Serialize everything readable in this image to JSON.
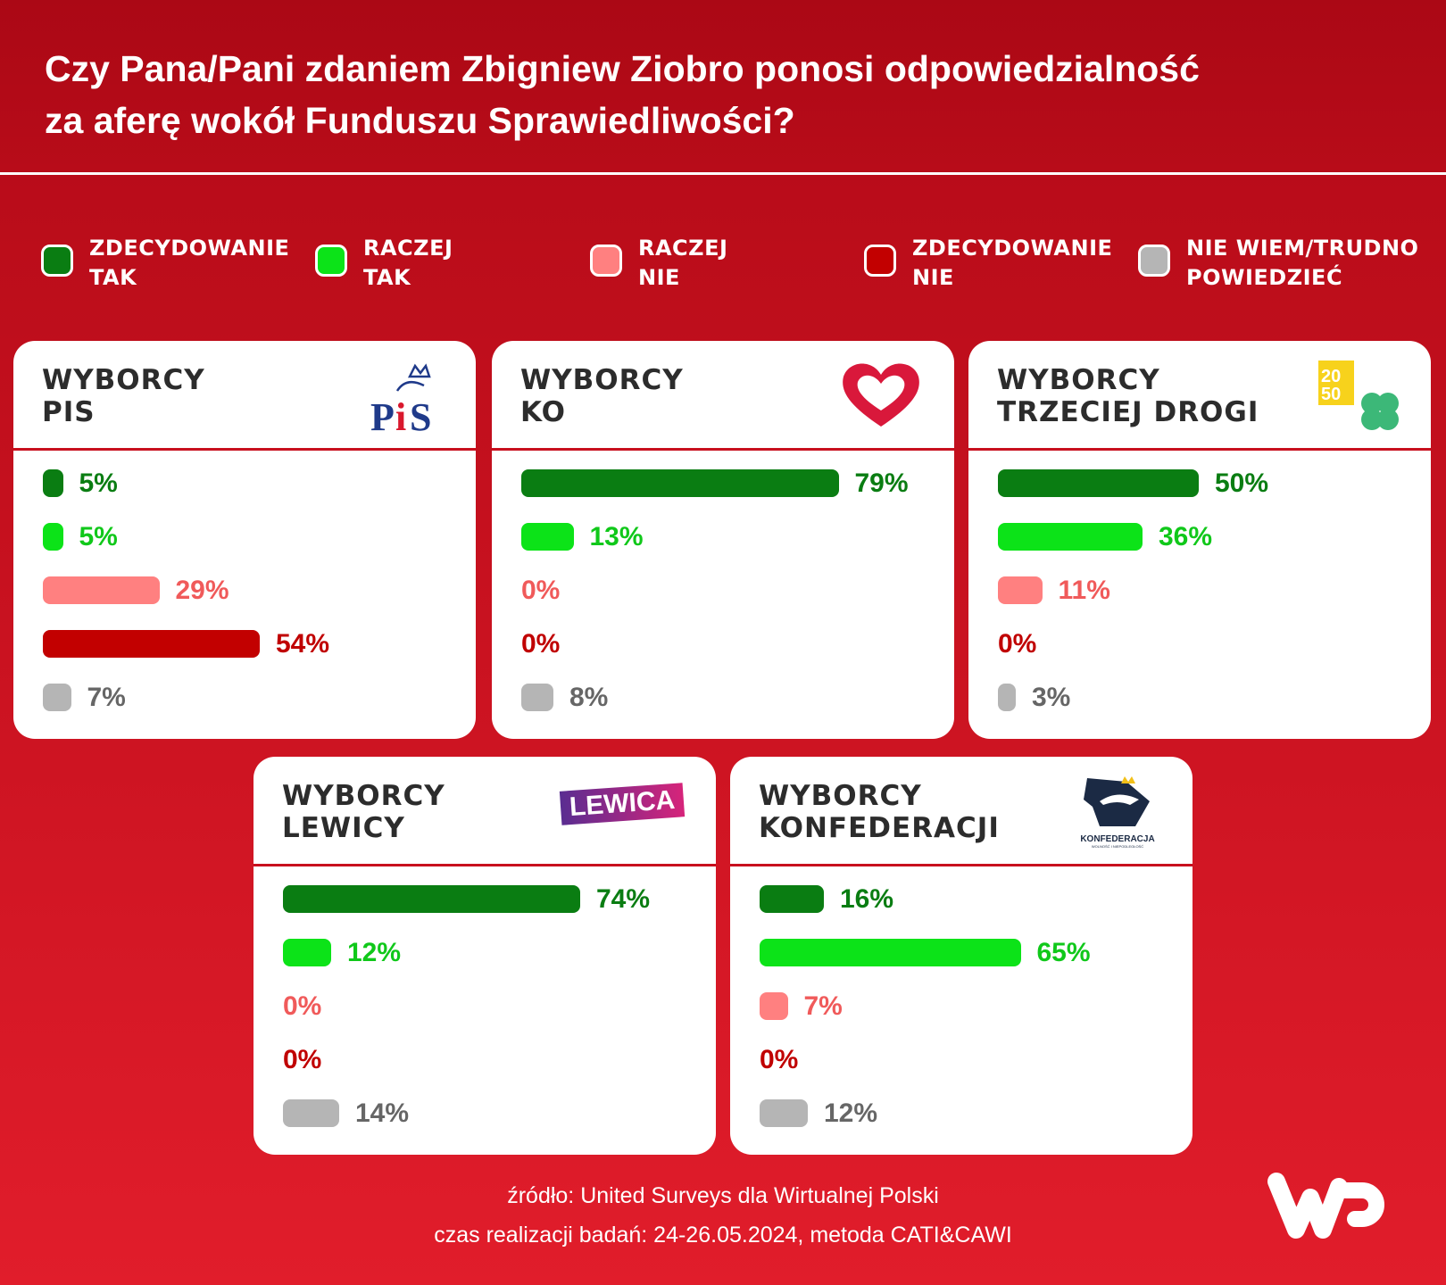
{
  "title": "Czy Pana/Pani zdaniem Zbigniew Ziobro ponosi odpowiedzialność\nza aferę wokół Funduszu Sprawiedliwości?",
  "colors": {
    "bars": [
      "#0a7d12",
      "#0ce318",
      "#ff8080",
      "#c20000",
      "#b5b5b5"
    ],
    "text": [
      "#0a7d12",
      "#10c81a",
      "#f05a5a",
      "#c00000",
      "#666666"
    ]
  },
  "chart_data": {
    "type": "bar",
    "title": "Czy Pana/Pani zdaniem Zbigniew Ziobro ponosi odpowiedzialność za aferę wokół Funduszu Sprawiedliwości?",
    "categories": [
      "ZDECYDOWANIE TAK",
      "RACZEJ TAK",
      "RACZEJ NIE",
      "ZDECYDOWANIE NIE",
      "NIE WIEM/TRUDNO POWIEDZIEĆ"
    ],
    "legend": [
      "ZDECYDOWANIE\nTAK",
      "RACZEJ\nTAK",
      "RACZEJ\nNIE",
      "ZDECYDOWANIE\nNIE",
      "NIE WIEM/TRUDNO\nPOWIEDZIEĆ"
    ],
    "unit": "%",
    "xlim": [
      0,
      100
    ],
    "groups": [
      {
        "name": "WYBORCY\nPIS",
        "logo": "PiS",
        "values": [
          5,
          5,
          29,
          54,
          7
        ]
      },
      {
        "name": "WYBORCY\nKO",
        "logo": "heart",
        "values": [
          79,
          13,
          0,
          0,
          8
        ]
      },
      {
        "name": "WYBORCY\nTRZECIEJ DROGI",
        "logo": "2050-clover",
        "values": [
          50,
          36,
          11,
          0,
          3
        ]
      },
      {
        "name": "WYBORCY\nLEWICY",
        "logo": "LEWICA",
        "values": [
          74,
          12,
          0,
          0,
          14
        ]
      },
      {
        "name": "WYBORCY\nKONFEDERACJI",
        "logo": "KONFEDERACJA",
        "values": [
          16,
          65,
          7,
          0,
          12
        ]
      }
    ]
  },
  "footer": {
    "source": "źródło: United Surveys dla Wirtualnej Polski",
    "period": "czas realizacji badań: 24-26.05.2024, metoda CATI&CAWI"
  },
  "logos": {
    "lewica": "LEWICA",
    "konfederacja": "KONFEDERACJA",
    "konf_sub": "WOLNOŚĆ I NIEPODLEGŁOŚĆ",
    "wp": "WP"
  }
}
